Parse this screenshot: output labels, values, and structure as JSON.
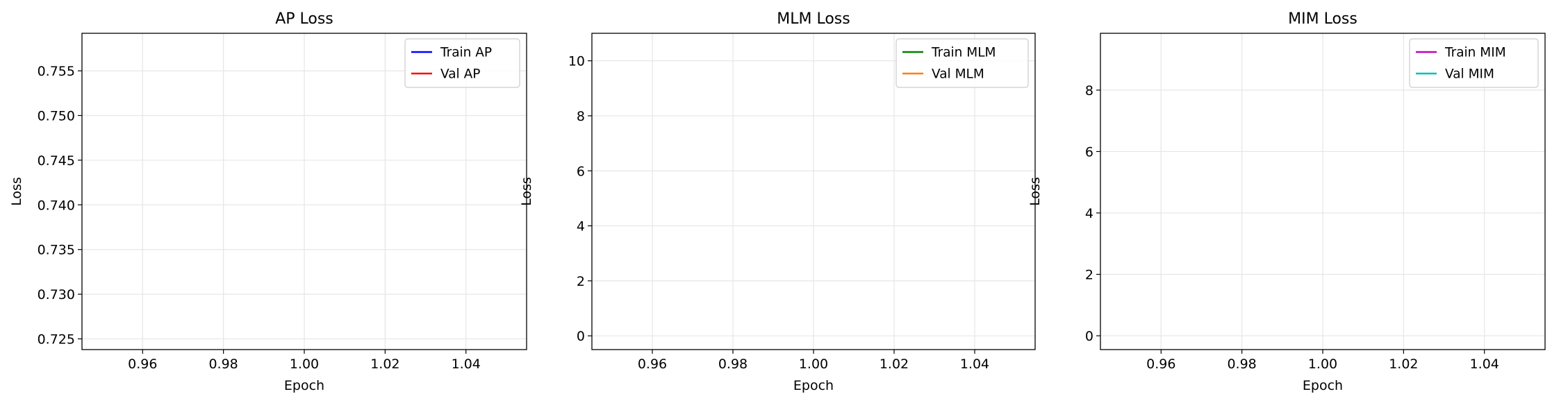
{
  "chart_data": [
    {
      "type": "line",
      "title": "AP Loss",
      "xlabel": "Epoch",
      "ylabel": "Loss",
      "xlim": [
        0.945,
        1.055
      ],
      "ylim": [
        0.7238,
        0.7592
      ],
      "xticks": [
        0.96,
        0.98,
        1.0,
        1.02,
        1.04
      ],
      "xtick_labels": [
        "0.96",
        "0.98",
        "1.00",
        "1.02",
        "1.04"
      ],
      "yticks": [
        0.725,
        0.73,
        0.735,
        0.74,
        0.745,
        0.75,
        0.755
      ],
      "ytick_labels": [
        "0.725",
        "0.730",
        "0.735",
        "0.740",
        "0.745",
        "0.750",
        "0.755"
      ],
      "grid": true,
      "legend_position": "upper right",
      "series": [
        {
          "name": "Train AP",
          "color": "#0000ff",
          "x": [],
          "y": []
        },
        {
          "name": "Val AP",
          "color": "#ff0000",
          "x": [],
          "y": []
        }
      ]
    },
    {
      "type": "line",
      "title": "MLM Loss",
      "xlabel": "Epoch",
      "ylabel": "Loss",
      "xlim": [
        0.945,
        1.055
      ],
      "ylim": [
        -0.5,
        11.0
      ],
      "xticks": [
        0.96,
        0.98,
        1.0,
        1.02,
        1.04
      ],
      "xtick_labels": [
        "0.96",
        "0.98",
        "1.00",
        "1.02",
        "1.04"
      ],
      "yticks": [
        0,
        2,
        4,
        6,
        8,
        10
      ],
      "ytick_labels": [
        "0",
        "2",
        "4",
        "6",
        "8",
        "10"
      ],
      "grid": true,
      "legend_position": "upper right",
      "series": [
        {
          "name": "Train MLM",
          "color": "#008000",
          "x": [],
          "y": []
        },
        {
          "name": "Val MLM",
          "color": "#ff7f0e",
          "x": [],
          "y": []
        }
      ]
    },
    {
      "type": "line",
      "title": "MIM Loss",
      "xlabel": "Epoch",
      "ylabel": "Loss",
      "xlim": [
        0.945,
        1.055
      ],
      "ylim": [
        -0.45,
        9.85
      ],
      "xticks": [
        0.96,
        0.98,
        1.0,
        1.02,
        1.04
      ],
      "xtick_labels": [
        "0.96",
        "0.98",
        "1.00",
        "1.02",
        "1.04"
      ],
      "yticks": [
        0,
        2,
        4,
        6,
        8
      ],
      "ytick_labels": [
        "0",
        "2",
        "4",
        "6",
        "8"
      ],
      "grid": true,
      "legend_position": "upper right",
      "series": [
        {
          "name": "Train MIM",
          "color": "#bf00bf",
          "x": [],
          "y": []
        },
        {
          "name": "Val MIM",
          "color": "#00bfbf",
          "x": [],
          "y": []
        }
      ]
    }
  ]
}
